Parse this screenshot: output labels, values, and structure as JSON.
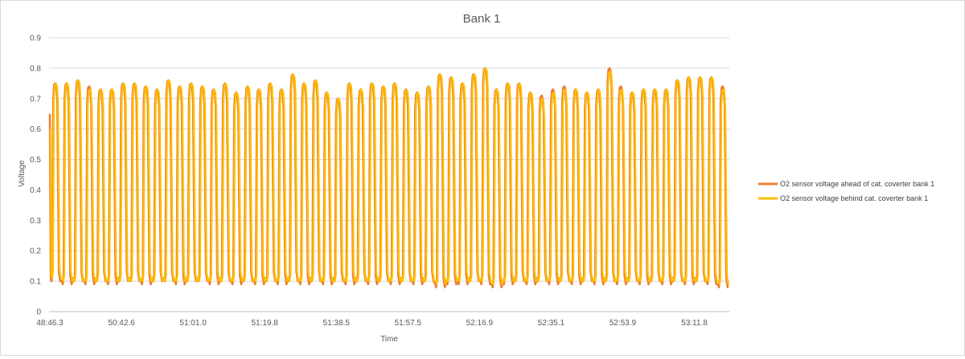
{
  "chart_data": {
    "type": "line",
    "title": "Bank 1",
    "xlabel": "Time",
    "ylabel": "Voltage",
    "ylim": [
      0,
      0.9
    ],
    "y_ticks": [
      "0",
      "0.1",
      "0.2",
      "0.3",
      "0.4",
      "0.5",
      "0.6",
      "0.7",
      "0.8",
      "0.9"
    ],
    "x_tick_labels": [
      "48:46.3",
      "50:42.6",
      "51:01.0",
      "51:19.8",
      "51:38.5",
      "51:57.5",
      "52:16.9",
      "52:35.1",
      "52:53.9",
      "53:11.8"
    ],
    "grid": true,
    "legend_position": "right",
    "colors": {
      "series1": "#ED7D31",
      "series2": "#FFC000",
      "grid": "#d9d9d9",
      "axis": "#bfbfbf"
    },
    "series": [
      {
        "name": "O2 sensor voltage ahead of cat. coverter bank 1",
        "color": "#ED7D31",
        "peaks": [
          0.75,
          0.75,
          0.76,
          0.74,
          0.73,
          0.73,
          0.75,
          0.75,
          0.74,
          0.73,
          0.76,
          0.74,
          0.75,
          0.74,
          0.73,
          0.75,
          0.72,
          0.74,
          0.73,
          0.75,
          0.73,
          0.78,
          0.75,
          0.76,
          0.72,
          0.7,
          0.75,
          0.73,
          0.75,
          0.74,
          0.75,
          0.73,
          0.72,
          0.74,
          0.78,
          0.77,
          0.75,
          0.78,
          0.8,
          0.73,
          0.75,
          0.75,
          0.72,
          0.71,
          0.73,
          0.74,
          0.73,
          0.72,
          0.73,
          0.8,
          0.74,
          0.72,
          0.73,
          0.73,
          0.73,
          0.76,
          0.77,
          0.77,
          0.77,
          0.74
        ],
        "troughs": [
          0.1,
          0.09,
          0.1,
          0.09,
          0.1,
          0.09,
          0.1,
          0.1,
          0.09,
          0.1,
          0.1,
          0.09,
          0.1,
          0.1,
          0.09,
          0.1,
          0.09,
          0.1,
          0.09,
          0.1,
          0.09,
          0.1,
          0.09,
          0.1,
          0.09,
          0.1,
          0.09,
          0.1,
          0.09,
          0.1,
          0.09,
          0.1,
          0.09,
          0.1,
          0.08,
          0.09,
          0.09,
          0.1,
          0.09,
          0.08,
          0.09,
          0.1,
          0.09,
          0.1,
          0.09,
          0.1,
          0.09,
          0.1,
          0.09,
          0.1,
          0.09,
          0.1,
          0.09,
          0.1,
          0.09,
          0.1,
          0.09,
          0.1,
          0.09,
          0.08
        ]
      },
      {
        "name": "O2 sensor voltage behind cat. coverter bank 1",
        "color": "#FFC000",
        "peaks": [
          0.75,
          0.75,
          0.76,
          0.73,
          0.73,
          0.73,
          0.75,
          0.75,
          0.74,
          0.73,
          0.76,
          0.74,
          0.75,
          0.74,
          0.73,
          0.75,
          0.72,
          0.74,
          0.73,
          0.75,
          0.73,
          0.78,
          0.75,
          0.76,
          0.72,
          0.7,
          0.75,
          0.73,
          0.75,
          0.74,
          0.75,
          0.73,
          0.72,
          0.74,
          0.78,
          0.77,
          0.75,
          0.78,
          0.8,
          0.73,
          0.75,
          0.75,
          0.72,
          0.7,
          0.72,
          0.73,
          0.73,
          0.72,
          0.73,
          0.79,
          0.73,
          0.72,
          0.73,
          0.73,
          0.73,
          0.76,
          0.77,
          0.77,
          0.77,
          0.73
        ],
        "troughs": [
          0.11,
          0.1,
          0.1,
          0.1,
          0.1,
          0.1,
          0.1,
          0.1,
          0.1,
          0.1,
          0.1,
          0.1,
          0.1,
          0.1,
          0.1,
          0.1,
          0.1,
          0.1,
          0.1,
          0.1,
          0.1,
          0.1,
          0.1,
          0.1,
          0.1,
          0.1,
          0.1,
          0.1,
          0.1,
          0.1,
          0.1,
          0.1,
          0.1,
          0.1,
          0.09,
          0.1,
          0.1,
          0.1,
          0.1,
          0.09,
          0.1,
          0.1,
          0.1,
          0.1,
          0.1,
          0.1,
          0.1,
          0.1,
          0.1,
          0.1,
          0.1,
          0.1,
          0.1,
          0.1,
          0.1,
          0.1,
          0.1,
          0.1,
          0.1,
          0.09
        ]
      }
    ]
  }
}
